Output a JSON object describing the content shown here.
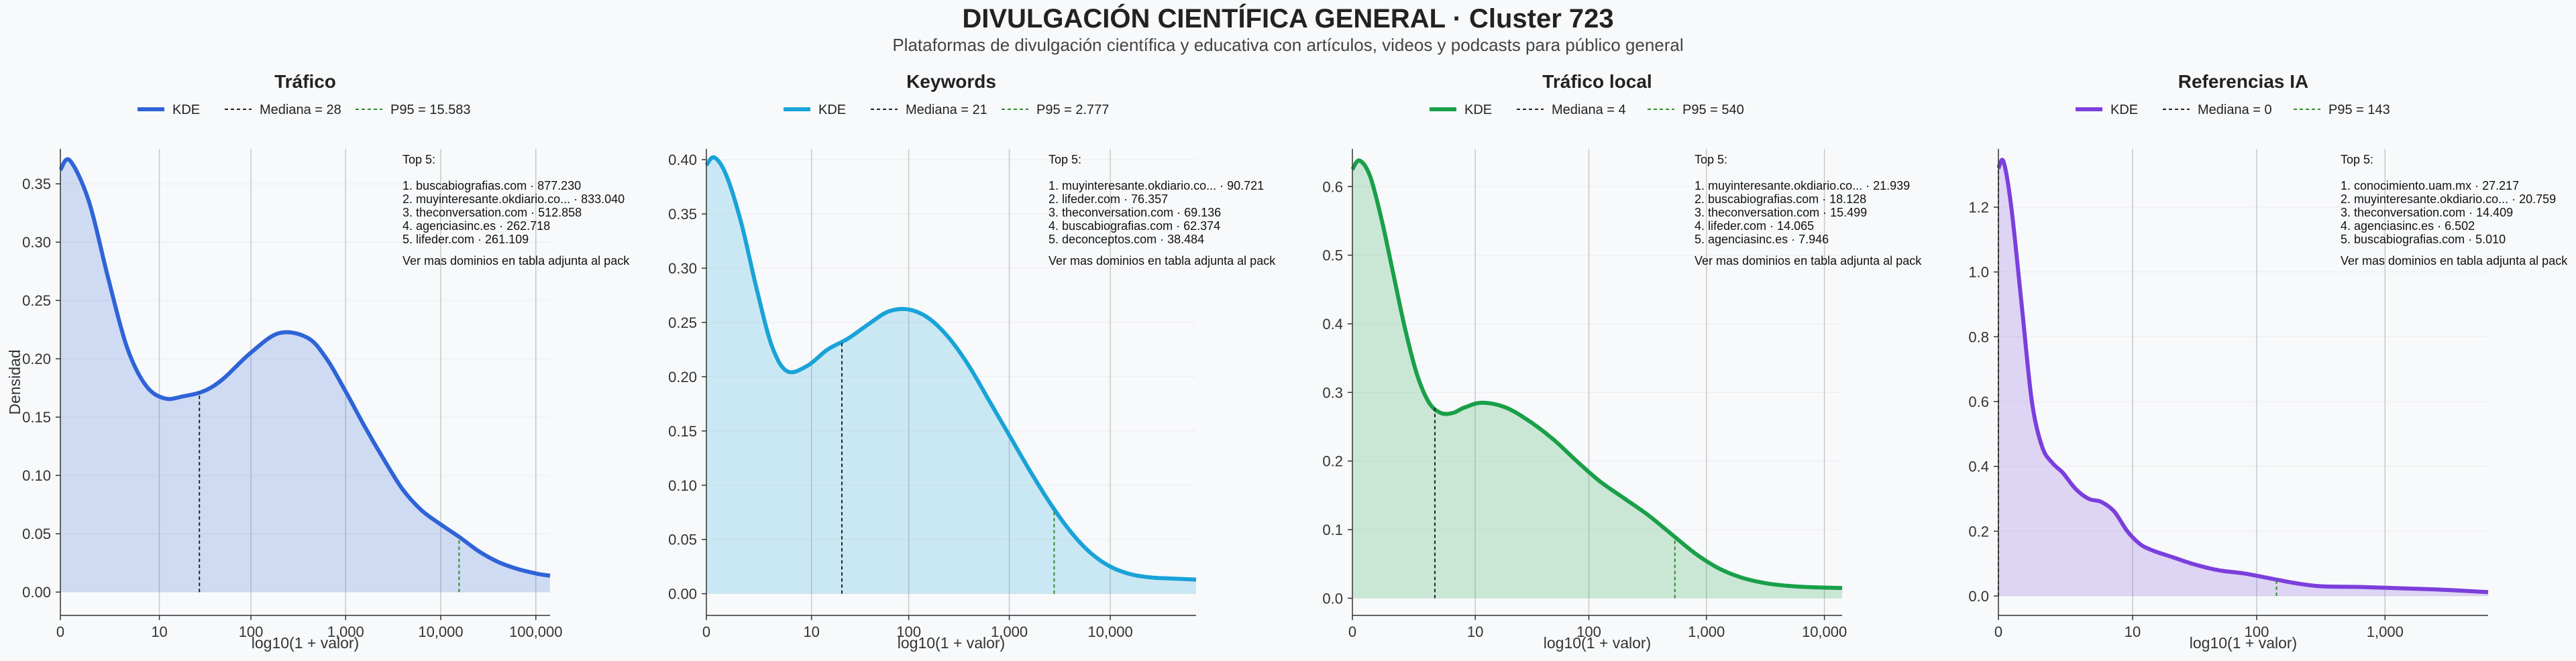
{
  "header": {
    "title": "DIVULGACIÓN CIENTÍFICA GENERAL · Cluster 723",
    "subtitle": "Plataformas de divulgación científica y educativa con artículos, videos y podcasts para público general"
  },
  "colors": {
    "trafico": "#2f63d8",
    "keywords": "#19a3d8",
    "trafico_local": "#19a048",
    "referencias_ia": "#7b3fdc",
    "median_line": "#222222",
    "p95_line": "#2e8b2e",
    "grid": "#c8c8c8"
  },
  "shared": {
    "xlabel": "log10(1 + valor)",
    "ylabel": "Densidad",
    "top_title": "Top 5:",
    "top_footer": "Ver mas dominios en tabla adjunta al pack",
    "legend_kde": "KDE"
  },
  "chart_data": [
    {
      "type": "area",
      "title": "Tráfico",
      "color_key": "trafico",
      "ylabel": "Densidad",
      "xlabel": "log10(1 + valor)",
      "legend": [
        "KDE",
        "Mediana = 28",
        "P95 = 15.583"
      ],
      "median_x": 1.462,
      "p95_x": 4.193,
      "x_range": [
        0,
        5.15
      ],
      "y_range": [
        -0.02,
        0.38
      ],
      "y_ticks": [
        0.0,
        0.05,
        0.1,
        0.15,
        0.2,
        0.25,
        0.3,
        0.35
      ],
      "y_tick_labels": [
        "0.00",
        "0.05",
        "0.10",
        "0.15",
        "0.20",
        "0.25",
        "0.30",
        "0.35"
      ],
      "x_ticks": [
        0,
        1.041,
        2.004,
        3.0,
        4.0,
        5.0
      ],
      "x_tick_labels": [
        "0",
        "10",
        "100",
        "1,000",
        "10,000",
        "100,000"
      ],
      "x": [
        0,
        0.1,
        0.3,
        0.5,
        0.7,
        0.9,
        1.1,
        1.3,
        1.5,
        1.7,
        2.0,
        2.3,
        2.6,
        2.8,
        3.0,
        3.2,
        3.4,
        3.6,
        3.8,
        4.0,
        4.2,
        4.4,
        4.6,
        4.8,
        5.0,
        5.15
      ],
      "y": [
        0.362,
        0.37,
        0.335,
        0.27,
        0.21,
        0.177,
        0.166,
        0.168,
        0.172,
        0.182,
        0.205,
        0.222,
        0.218,
        0.2,
        0.172,
        0.142,
        0.114,
        0.088,
        0.07,
        0.058,
        0.047,
        0.035,
        0.026,
        0.02,
        0.016,
        0.014
      ],
      "top5": [
        "1. buscabiografias.com · 877.230",
        "2. muyinteresante.okdiario.co... · 833.040",
        "3. theconversation.com · 512.858",
        "4. agenciasinc.es · 262.718",
        "5. lifeder.com · 261.109"
      ]
    },
    {
      "type": "area",
      "title": "Keywords",
      "color_key": "keywords",
      "ylabel": "",
      "xlabel": "log10(1 + valor)",
      "legend": [
        "KDE",
        "Mediana = 21",
        "P95 = 2.777"
      ],
      "median_x": 1.342,
      "p95_x": 3.444,
      "x_range": [
        0,
        4.85
      ],
      "y_range": [
        -0.02,
        0.41
      ],
      "y_ticks": [
        0.0,
        0.05,
        0.1,
        0.15,
        0.2,
        0.25,
        0.3,
        0.35,
        0.4
      ],
      "y_tick_labels": [
        "0.00",
        "0.05",
        "0.10",
        "0.15",
        "0.20",
        "0.25",
        "0.30",
        "0.35",
        "0.40"
      ],
      "x_ticks": [
        0,
        1.041,
        2.004,
        3.0,
        4.0
      ],
      "x_tick_labels": [
        "0",
        "10",
        "100",
        "1,000",
        "10,000"
      ],
      "x": [
        0,
        0.08,
        0.2,
        0.35,
        0.5,
        0.65,
        0.8,
        1.0,
        1.2,
        1.4,
        1.6,
        1.8,
        2.0,
        2.2,
        2.4,
        2.6,
        2.8,
        3.0,
        3.2,
        3.4,
        3.6,
        3.8,
        4.0,
        4.2,
        4.4,
        4.6,
        4.85
      ],
      "y": [
        0.395,
        0.402,
        0.385,
        0.34,
        0.28,
        0.228,
        0.205,
        0.21,
        0.225,
        0.235,
        0.248,
        0.26,
        0.262,
        0.254,
        0.236,
        0.21,
        0.178,
        0.146,
        0.114,
        0.084,
        0.058,
        0.038,
        0.025,
        0.018,
        0.015,
        0.014,
        0.013
      ],
      "top5": [
        "1. muyinteresante.okdiario.co... · 90.721",
        "2. lifeder.com · 76.357",
        "3. theconversation.com · 69.136",
        "4. buscabiografias.com · 62.374",
        "5. deconceptos.com · 38.484"
      ]
    },
    {
      "type": "area",
      "title": "Tráfico local",
      "color_key": "trafico_local",
      "ylabel": "",
      "xlabel": "log10(1 + valor)",
      "legend": [
        "KDE",
        "Mediana = 4",
        "P95 = 540"
      ],
      "median_x": 0.699,
      "p95_x": 2.733,
      "x_range": [
        0,
        4.15
      ],
      "y_range": [
        -0.025,
        0.655
      ],
      "y_ticks": [
        0.0,
        0.1,
        0.2,
        0.3,
        0.4,
        0.5,
        0.6
      ],
      "y_tick_labels": [
        "0.0",
        "0.1",
        "0.2",
        "0.3",
        "0.4",
        "0.5",
        "0.6"
      ],
      "x_ticks": [
        0,
        1.041,
        2.004,
        3.0,
        4.0
      ],
      "x_tick_labels": [
        "0",
        "10",
        "100",
        "1,000",
        "10,000"
      ],
      "x": [
        0,
        0.06,
        0.15,
        0.25,
        0.35,
        0.45,
        0.55,
        0.65,
        0.75,
        0.85,
        0.95,
        1.1,
        1.3,
        1.5,
        1.7,
        1.9,
        2.1,
        2.3,
        2.5,
        2.7,
        2.9,
        3.1,
        3.3,
        3.5,
        3.7,
        3.9,
        4.15
      ],
      "y": [
        0.625,
        0.638,
        0.615,
        0.55,
        0.47,
        0.39,
        0.325,
        0.285,
        0.27,
        0.27,
        0.278,
        0.285,
        0.278,
        0.258,
        0.232,
        0.2,
        0.17,
        0.146,
        0.122,
        0.094,
        0.066,
        0.044,
        0.03,
        0.022,
        0.018,
        0.016,
        0.015
      ],
      "top5": [
        "1. muyinteresante.okdiario.co... · 21.939",
        "2. buscabiografias.com · 18.128",
        "3. theconversation.com · 15.499",
        "4. lifeder.com · 14.065",
        "5. agenciasinc.es · 7.946"
      ]
    },
    {
      "type": "area",
      "title": "Referencias IA",
      "color_key": "referencias_ia",
      "ylabel": "",
      "xlabel": "log10(1 + valor)",
      "legend": [
        "KDE",
        "Mediana = 0",
        "P95 = 143"
      ],
      "median_x": 0.0,
      "p95_x": 2.158,
      "x_range": [
        0,
        3.8
      ],
      "y_range": [
        -0.06,
        1.38
      ],
      "y_ticks": [
        0.0,
        0.2,
        0.4,
        0.6,
        0.8,
        1.0,
        1.2
      ],
      "y_tick_labels": [
        "0.0",
        "0.2",
        "0.4",
        "0.6",
        "0.8",
        "1.0",
        "1.2"
      ],
      "x_ticks": [
        0,
        1.041,
        2.004,
        3.0
      ],
      "x_tick_labels": [
        "0",
        "10",
        "100",
        "1,000"
      ],
      "x": [
        0,
        0.04,
        0.1,
        0.18,
        0.26,
        0.34,
        0.42,
        0.5,
        0.6,
        0.7,
        0.8,
        0.9,
        1.0,
        1.1,
        1.2,
        1.35,
        1.5,
        1.7,
        1.9,
        2.1,
        2.3,
        2.5,
        2.8,
        3.1,
        3.4,
        3.8
      ],
      "y": [
        1.32,
        1.34,
        1.2,
        0.9,
        0.6,
        0.46,
        0.41,
        0.38,
        0.33,
        0.3,
        0.29,
        0.26,
        0.2,
        0.16,
        0.14,
        0.12,
        0.1,
        0.08,
        0.07,
        0.055,
        0.04,
        0.03,
        0.028,
        0.024,
        0.02,
        0.012
      ],
      "top5": [
        "1. conocimiento.uam.mx · 27.217",
        "2. muyinteresante.okdiario.co... · 20.759",
        "3. theconversation.com · 14.409",
        "4. agenciasinc.es · 6.502",
        "5. buscabiografias.com · 5.010"
      ]
    }
  ]
}
